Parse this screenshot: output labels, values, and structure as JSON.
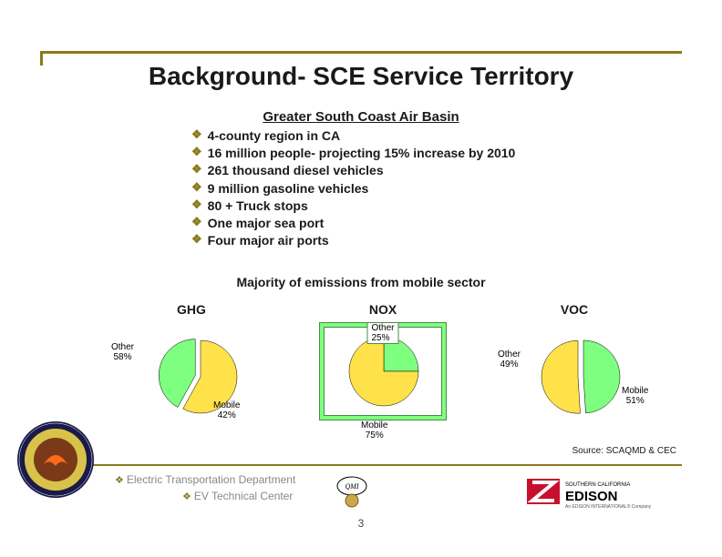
{
  "title": "Background- SCE Service Territory",
  "subtitle": "Greater South Coast Air Basin",
  "bullets": [
    "4-county region in CA",
    "16 million people- projecting 15% increase by 2010",
    "261 thousand diesel vehicles",
    "9 million gasoline vehicles",
    "80 + Truck stops",
    "One major sea port",
    "Four major air ports"
  ],
  "emissions_line": "Majority of emissions from mobile  sector",
  "charts": [
    {
      "title": "GHG",
      "type": "pie",
      "background_color": "#ffffff",
      "slices": [
        {
          "label": "Other",
          "value": 58,
          "color": "#ffe24a",
          "label_pos": "left"
        },
        {
          "label": "Mobile",
          "value": 42,
          "color": "#7fff7f",
          "label_pos": "right"
        }
      ]
    },
    {
      "title": "NOX",
      "type": "pie",
      "background_color": "#7fff7f",
      "frame": true,
      "slices": [
        {
          "label": "Other",
          "value": 25,
          "color": "#7fff7f",
          "label_pos": "top"
        },
        {
          "label": "Mobile",
          "value": 75,
          "color": "#ffe24a",
          "label_pos": "bottom"
        }
      ]
    },
    {
      "title": "VOC",
      "type": "pie",
      "background_color": "#ffffff",
      "slices": [
        {
          "label": "Other",
          "value": 49,
          "color": "#7fff7f",
          "label_pos": "left"
        },
        {
          "label": "Mobile",
          "value": 51,
          "color": "#ffe24a",
          "label_pos": "right"
        }
      ]
    }
  ],
  "source_line": "Source: SCAQMD & CEC",
  "dept_line1": "Electric Transportation Department",
  "dept_line2": "EV Technical Center",
  "page_number": "3",
  "bullet_glyph": "❖",
  "colors": {
    "accent": "#8a7a1a",
    "text": "#1a1a1a",
    "muted": "#888888"
  }
}
